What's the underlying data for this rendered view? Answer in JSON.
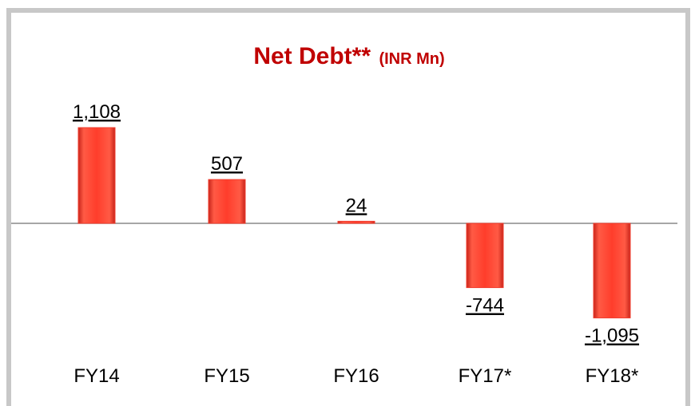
{
  "chart_data": {
    "type": "bar",
    "title": "Net Debt**",
    "subtitle": "(INR Mn)",
    "categories": [
      "FY14",
      "FY15",
      "FY16",
      "FY17*",
      "FY18*"
    ],
    "values": [
      1108,
      507,
      24,
      -744,
      -1095
    ],
    "value_labels": [
      "1,108",
      "507",
      "24",
      "-744",
      "-1,095"
    ],
    "color": "#f03c2e"
  }
}
